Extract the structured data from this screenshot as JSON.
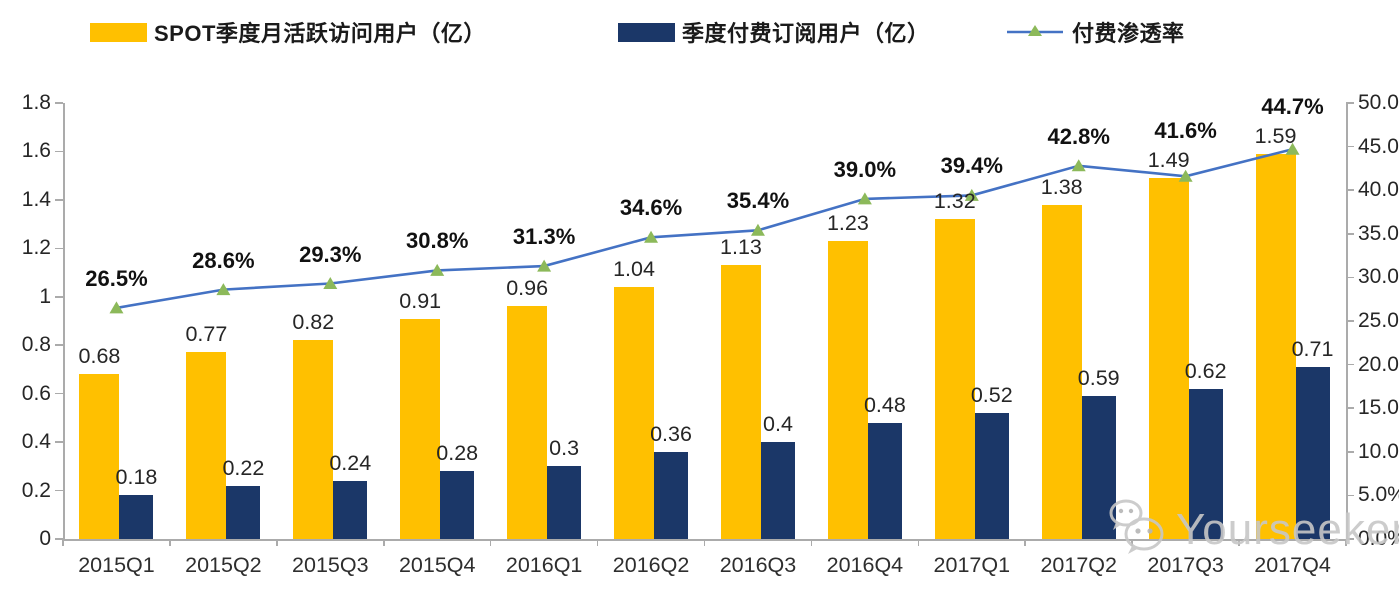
{
  "chart_data": {
    "type": "bar",
    "subtype": "combo-bar-line",
    "categories": [
      "2015Q1",
      "2015Q2",
      "2015Q3",
      "2015Q4",
      "2016Q1",
      "2016Q2",
      "2016Q3",
      "2016Q4",
      "2017Q1",
      "2017Q2",
      "2017Q3",
      "2017Q4"
    ],
    "series": [
      {
        "name": "SPOT季度月活跃访问用户（亿）",
        "type": "bar",
        "axis": "left",
        "color": "#FFC000",
        "values": [
          0.68,
          0.77,
          0.82,
          0.91,
          0.96,
          1.04,
          1.13,
          1.23,
          1.32,
          1.38,
          1.49,
          1.59
        ],
        "labels": [
          "0.68",
          "0.77",
          "0.82",
          "0.91",
          "0.96",
          "1.04",
          "1.13",
          "1.23",
          "1.32",
          "1.38",
          "1.49",
          "1.59"
        ]
      },
      {
        "name": "季度付费订阅用户（亿）",
        "type": "bar",
        "axis": "left",
        "color": "#1B3768",
        "values": [
          0.18,
          0.22,
          0.24,
          0.28,
          0.3,
          0.36,
          0.4,
          0.48,
          0.52,
          0.59,
          0.62,
          0.71
        ],
        "labels": [
          "0.18",
          "0.22",
          "0.24",
          "0.28",
          "0.3",
          "0.36",
          "0.4",
          "0.48",
          "0.52",
          "0.59",
          "0.62",
          "0.71"
        ]
      },
      {
        "name": "付费渗透率",
        "type": "line",
        "axis": "right",
        "color": "#4472C4",
        "marker": "triangle",
        "marker_color": "#8CB95A",
        "values": [
          26.5,
          28.6,
          29.3,
          30.8,
          31.3,
          34.6,
          35.4,
          39.0,
          39.4,
          42.8,
          41.6,
          44.7
        ],
        "labels": [
          "26.5%",
          "28.6%",
          "29.3%",
          "30.8%",
          "31.3%",
          "34.6%",
          "35.4%",
          "39.0%",
          "39.4%",
          "42.8%",
          "41.6%",
          "44.7%"
        ]
      }
    ],
    "left_axis": {
      "min": 0,
      "max": 1.8,
      "ticks": [
        "0",
        "0.2",
        "0.4",
        "0.6",
        "0.8",
        "1",
        "1.2",
        "1.4",
        "1.6",
        "1.8"
      ]
    },
    "right_axis": {
      "min": 0,
      "max": 50,
      "ticks": [
        "0.0%",
        "5.0%",
        "10.0%",
        "15.0%",
        "20.0%",
        "25.0%",
        "30.0%",
        "35.0%",
        "40.0%",
        "45.0%",
        "50.0%"
      ]
    },
    "grid": false,
    "legend_position": "top",
    "title": ""
  },
  "watermark": {
    "text": "Yourseeker",
    "icon": "wechat-icon"
  },
  "colors": {
    "mau_bar": "#FFC000",
    "subs_bar": "#1B3768",
    "line": "#4472C4",
    "marker_green": "#8CB95A",
    "axis_gray": "#ABABAB",
    "watermark_gray": "#C7C7C7"
  }
}
